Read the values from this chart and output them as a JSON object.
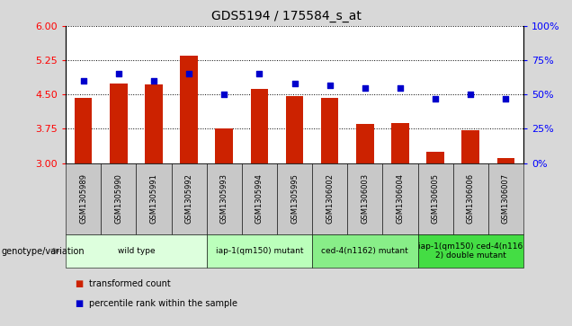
{
  "title": "GDS5194 / 175584_s_at",
  "samples": [
    "GSM1305989",
    "GSM1305990",
    "GSM1305991",
    "GSM1305992",
    "GSM1305993",
    "GSM1305994",
    "GSM1305995",
    "GSM1306002",
    "GSM1306003",
    "GSM1306004",
    "GSM1306005",
    "GSM1306006",
    "GSM1306007"
  ],
  "bar_values": [
    4.42,
    4.75,
    4.72,
    5.35,
    3.75,
    4.62,
    4.47,
    4.42,
    3.85,
    3.87,
    3.25,
    3.72,
    3.1
  ],
  "dot_values": [
    60,
    65,
    60,
    65,
    50,
    65,
    58,
    57,
    55,
    55,
    47,
    50,
    47
  ],
  "ylim_left": [
    3,
    6
  ],
  "ylim_right": [
    0,
    100
  ],
  "yticks_left": [
    3,
    3.75,
    4.5,
    5.25,
    6
  ],
  "yticks_right": [
    0,
    25,
    50,
    75,
    100
  ],
  "bar_color": "#cc2200",
  "dot_color": "#0000cc",
  "bg_color": "#d8d8d8",
  "plot_bg": "#ffffff",
  "tick_bg": "#c8c8c8",
  "groups": [
    {
      "label": "wild type",
      "start": 0,
      "end": 3,
      "color": "#ddffdd"
    },
    {
      "label": "iap-1(qm150) mutant",
      "start": 4,
      "end": 6,
      "color": "#bbffbb"
    },
    {
      "label": "ced-4(n1162) mutant",
      "start": 7,
      "end": 9,
      "color": "#88ee88"
    },
    {
      "label": "iap-1(qm150) ced-4(n116\n2) double mutant",
      "start": 10,
      "end": 12,
      "color": "#44dd44"
    }
  ],
  "genotype_label": "genotype/variation",
  "legend_items": [
    {
      "label": "transformed count",
      "color": "#cc2200"
    },
    {
      "label": "percentile rank within the sample",
      "color": "#0000cc"
    }
  ],
  "fig_width": 6.36,
  "fig_height": 3.63
}
